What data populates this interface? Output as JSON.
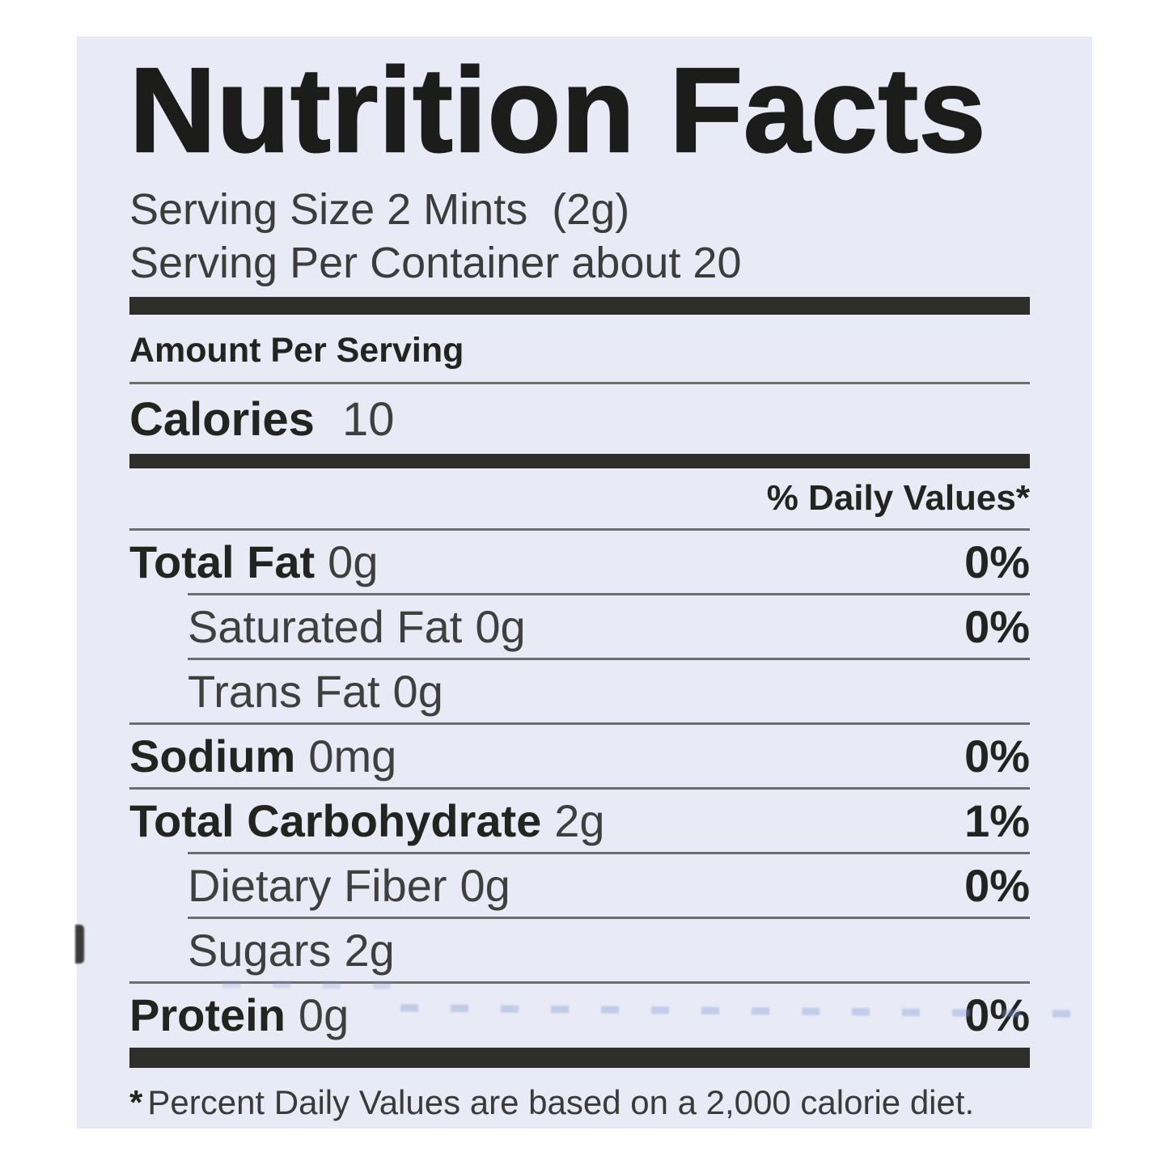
{
  "colors": {
    "page_background": "#ffffff",
    "card_background": "#e8eaf5",
    "heading_text": "#23231f",
    "body_text": "#3f3f3e",
    "rule": "#6e6e6e",
    "thick_bar": "#2e2e2a"
  },
  "label": {
    "title": "Nutrition Facts",
    "serving_size_line": "Serving Size 2 Mints  (2g)",
    "servings_per_container_line": "Serving Per Container about 20",
    "amount_per_serving": "Amount Per Serving",
    "calories": {
      "label": "Calories",
      "value": "10"
    },
    "daily_values_header": "% Daily Values*",
    "rows": [
      {
        "name": "Total Fat",
        "value": "0g",
        "dv": "0%"
      },
      {
        "name": "Saturated Fat",
        "value": "0g",
        "dv": "0%"
      },
      {
        "name": "Trans Fat",
        "value": "0g",
        "dv": ""
      },
      {
        "name": "Sodium",
        "value": "0mg",
        "dv": "0%"
      },
      {
        "name": "Total Carbohydrate",
        "value": "2g",
        "dv": "1%"
      },
      {
        "name": "Dietary Fiber",
        "value": "0g",
        "dv": "0%"
      },
      {
        "name": "Sugars",
        "value": "2g",
        "dv": ""
      },
      {
        "name": "Protein",
        "value": "0g",
        "dv": "0%"
      }
    ],
    "footnote_marker": "*",
    "footnote": "Percent Daily Values are based on a 2,000 calorie diet."
  }
}
